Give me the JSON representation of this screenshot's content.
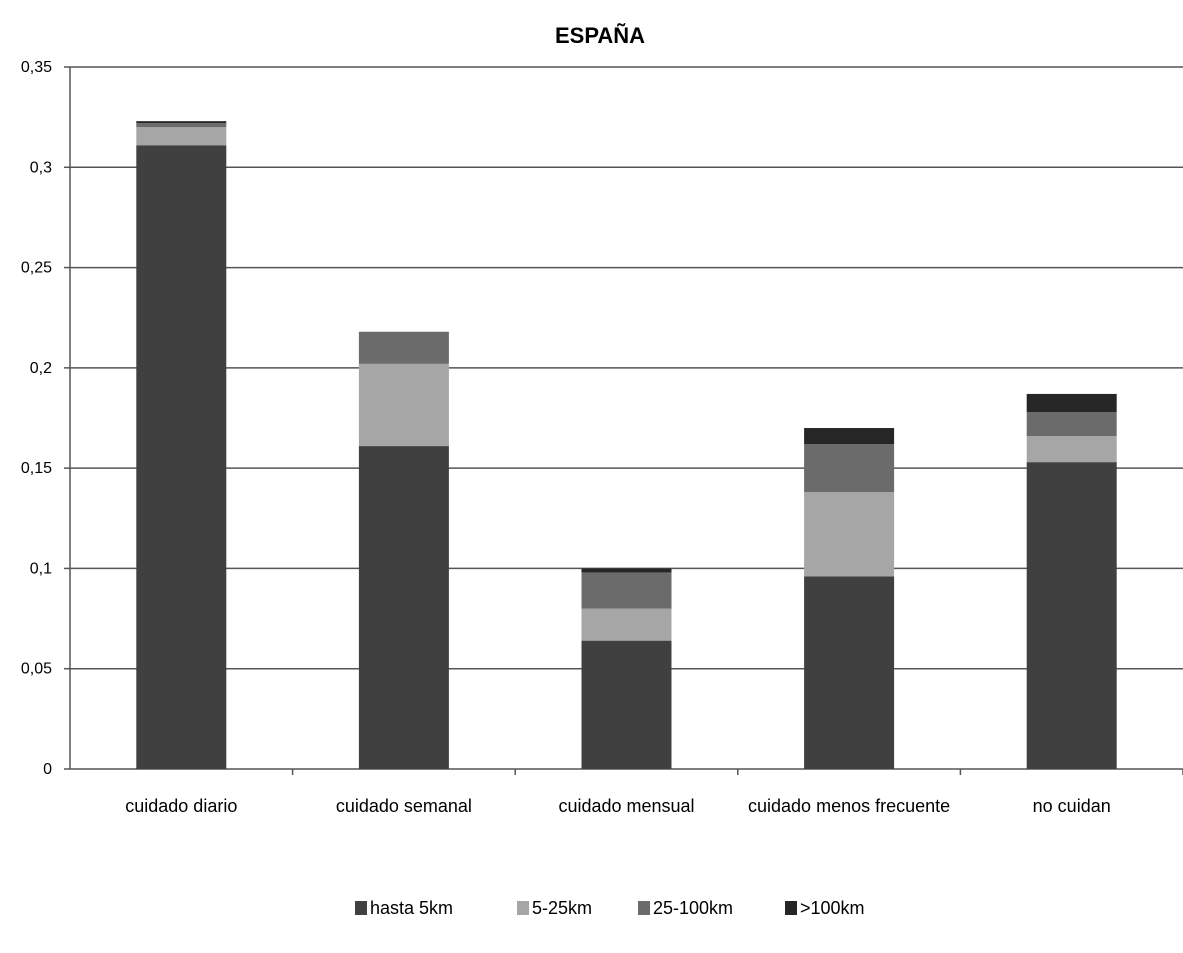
{
  "chart_data": {
    "type": "bar",
    "stacked": true,
    "title": "ESPAÑA",
    "xlabel": "",
    "ylabel": "",
    "ylim": [
      0,
      0.35
    ],
    "yticks": [
      0,
      0.05,
      0.1,
      0.15,
      0.2,
      0.25,
      0.3,
      0.35
    ],
    "ytick_labels": [
      "0",
      "0,05",
      "0,1",
      "0,15",
      "0,2",
      "0,25",
      "0,3",
      "0,35"
    ],
    "grid": true,
    "legend_position": "bottom",
    "categories": [
      "cuidado diario",
      "cuidado semanal",
      "cuidado mensual",
      "cuidado menos frecuente",
      "no cuidan"
    ],
    "series": [
      {
        "name": "hasta 5km",
        "color": "#404040",
        "values": [
          0.311,
          0.161,
          0.064,
          0.096,
          0.153
        ]
      },
      {
        "name": "5-25km",
        "color": "#a6a6a6",
        "values": [
          0.009,
          0.041,
          0.016,
          0.042,
          0.013
        ]
      },
      {
        "name": "25-100km",
        "color": "#6b6b6b",
        "values": [
          0.002,
          0.016,
          0.018,
          0.024,
          0.012
        ]
      },
      {
        "name": ">100km",
        "color": "#262626",
        "values": [
          0.001,
          0.0,
          0.002,
          0.008,
          0.009
        ]
      }
    ]
  }
}
